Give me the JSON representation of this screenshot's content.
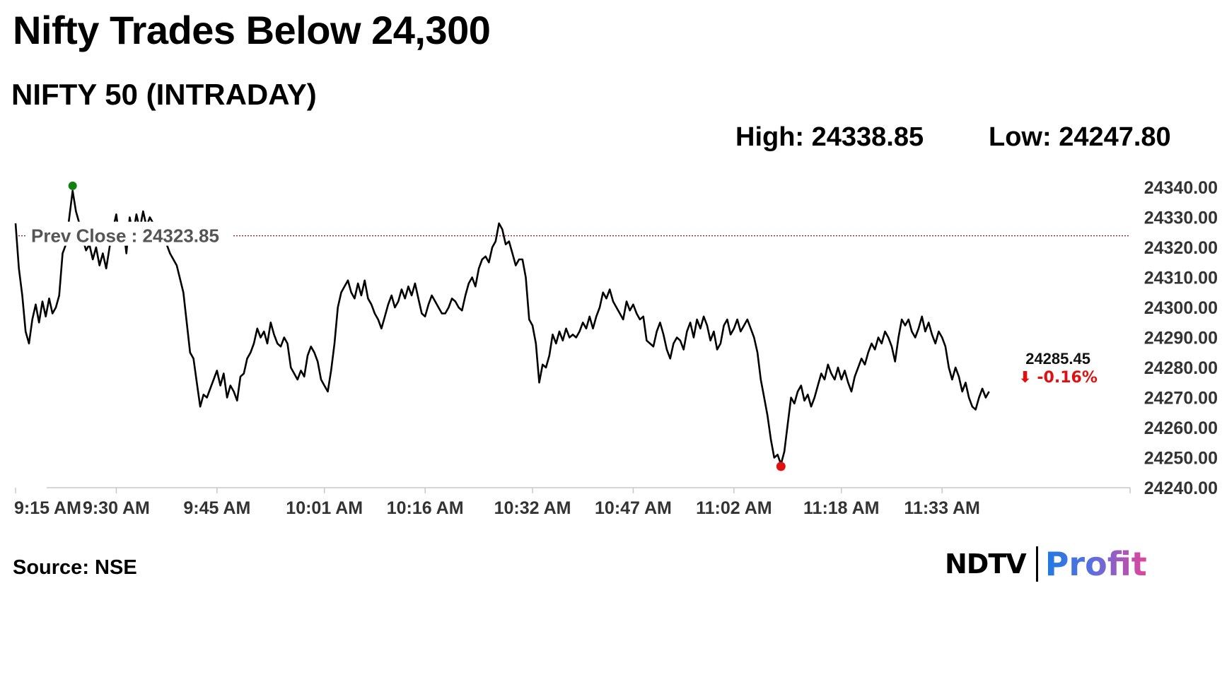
{
  "headline": "Nifty Trades Below 24,300",
  "subtitle": "NIFTY 50 (INTRADAY)",
  "stats": {
    "high": "High: 24338.85",
    "low": "Low: 24247.80"
  },
  "source": "Source: NSE",
  "logo": {
    "ndtv": "NDTV",
    "profit": "Profit"
  },
  "colors": {
    "line": "#000000",
    "prev_close": "#8b1a1a",
    "high_marker": "#108010",
    "low_marker": "#e01010",
    "last_marker": "#1a2aa8",
    "change": "#e01010",
    "axis": "#c8c8c8"
  },
  "chart_data": {
    "type": "line",
    "title": "NIFTY 50 (INTRADAY)",
    "xlabel": "",
    "ylabel": "",
    "ylim": [
      24240,
      24340
    ],
    "y_ticks": [
      "24340.00",
      "24330.00",
      "24320.00",
      "24310.00",
      "24300.00",
      "24290.00",
      "24280.00",
      "24270.00",
      "24260.00",
      "24250.00",
      "24240.00"
    ],
    "x_ticks": [
      "9:15 AM",
      "9:30 AM",
      "9:45 AM",
      "10:01 AM",
      "10:16 AM",
      "10:32 AM",
      "10:47 AM",
      "11:02 AM",
      "11:18 AM",
      "11:33 AM"
    ],
    "x_tick_minutes": [
      0,
      15,
      30,
      46,
      61,
      77,
      92,
      107,
      123,
      138
    ],
    "prev_close": {
      "label": "Prev Close : 24323.85",
      "value": 24323.85
    },
    "last": {
      "value_label": "24285.45",
      "change_label": "-0.16%",
      "value": 24285.45,
      "minute": 150
    },
    "high_point": {
      "minute": 8.5,
      "value": 24338.85
    },
    "low_point": {
      "minute": 114,
      "value": 24247.8
    },
    "series": [
      {
        "points": [
          [
            0,
            24328
          ],
          [
            0.5,
            24313
          ],
          [
            1,
            24304
          ],
          [
            1.5,
            24292
          ],
          [
            2,
            24288
          ],
          [
            2.5,
            24296
          ],
          [
            3,
            24301
          ],
          [
            3.5,
            24295
          ],
          [
            4,
            24302
          ],
          [
            4.5,
            24297
          ],
          [
            5,
            24303
          ],
          [
            5.5,
            24298
          ],
          [
            6,
            24300
          ],
          [
            6.5,
            24304
          ],
          [
            7,
            24318
          ],
          [
            7.5,
            24321
          ],
          [
            8,
            24330
          ],
          [
            8.5,
            24338.85
          ],
          [
            9,
            24332
          ],
          [
            9.5,
            24328
          ],
          [
            10,
            24323
          ],
          [
            10.5,
            24319
          ],
          [
            11,
            24321
          ],
          [
            11.5,
            24316
          ],
          [
            12,
            24320
          ],
          [
            12.5,
            24314
          ],
          [
            13,
            24318
          ],
          [
            13.5,
            24313
          ],
          [
            14,
            24320
          ],
          [
            14.5,
            24326
          ],
          [
            15,
            24331
          ],
          [
            15.5,
            24322
          ],
          [
            16,
            24328
          ],
          [
            16.5,
            24318
          ],
          [
            17,
            24330
          ],
          [
            17.5,
            24324
          ],
          [
            18,
            24331
          ],
          [
            18.5,
            24326
          ],
          [
            19,
            24332
          ],
          [
            19.5,
            24327
          ],
          [
            20,
            24330
          ],
          [
            21,
            24326
          ],
          [
            21.5,
            24322
          ],
          [
            22,
            24324
          ],
          [
            23,
            24318
          ],
          [
            24,
            24314
          ],
          [
            25,
            24305
          ],
          [
            26,
            24285
          ],
          [
            26.5,
            24283
          ],
          [
            27,
            24275
          ],
          [
            27.5,
            24267
          ],
          [
            28,
            24271
          ],
          [
            28.5,
            24270
          ],
          [
            29,
            24273
          ],
          [
            29.5,
            24276
          ],
          [
            30,
            24279
          ],
          [
            30.5,
            24274
          ],
          [
            31,
            24278
          ],
          [
            31.5,
            24270
          ],
          [
            32,
            24274
          ],
          [
            32.5,
            24272
          ],
          [
            33,
            24269
          ],
          [
            33.5,
            24277
          ],
          [
            34,
            24278
          ],
          [
            34.5,
            24283
          ],
          [
            35,
            24285
          ],
          [
            35.5,
            24288
          ],
          [
            36,
            24293
          ],
          [
            36.5,
            24290
          ],
          [
            37,
            24292
          ],
          [
            37.5,
            24288
          ],
          [
            38,
            24295
          ],
          [
            38.5,
            24291
          ],
          [
            39,
            24288
          ],
          [
            39.5,
            24287
          ],
          [
            40,
            24290
          ],
          [
            40.5,
            24288
          ],
          [
            41,
            24280
          ],
          [
            41.5,
            24278
          ],
          [
            42,
            24276
          ],
          [
            42.5,
            24279
          ],
          [
            43,
            24277
          ],
          [
            43.5,
            24284
          ],
          [
            44,
            24287
          ],
          [
            44.5,
            24285
          ],
          [
            45,
            24282
          ],
          [
            45.5,
            24276
          ],
          [
            46,
            24274
          ],
          [
            46.5,
            24272
          ],
          [
            47,
            24279
          ],
          [
            47.5,
            24288
          ],
          [
            48,
            24300
          ],
          [
            48.5,
            24305
          ],
          [
            49,
            24307
          ],
          [
            49.5,
            24309
          ],
          [
            50,
            24305
          ],
          [
            50.5,
            24303
          ],
          [
            51,
            24308
          ],
          [
            51.5,
            24304
          ],
          [
            52,
            24309
          ],
          [
            52.5,
            24303
          ],
          [
            53,
            24301
          ],
          [
            53.5,
            24298
          ],
          [
            54,
            24296
          ],
          [
            54.5,
            24293
          ],
          [
            55,
            24297
          ],
          [
            55.5,
            24301
          ],
          [
            56,
            24304
          ],
          [
            56.5,
            24300
          ],
          [
            57,
            24302
          ],
          [
            57.5,
            24306
          ],
          [
            58,
            24303
          ],
          [
            58.5,
            24307
          ],
          [
            59,
            24304
          ],
          [
            59.5,
            24308
          ],
          [
            60,
            24303
          ],
          [
            60.5,
            24298
          ],
          [
            61,
            24297
          ],
          [
            61.5,
            24301
          ],
          [
            62,
            24304
          ],
          [
            62.5,
            24302
          ],
          [
            63,
            24300
          ],
          [
            63.5,
            24298
          ],
          [
            64,
            24298
          ],
          [
            64.5,
            24300
          ],
          [
            65,
            24303
          ],
          [
            65.5,
            24302
          ],
          [
            66,
            24300
          ],
          [
            66.5,
            24299
          ],
          [
            67,
            24304
          ],
          [
            67.5,
            24308
          ],
          [
            68,
            24310
          ],
          [
            68.5,
            24307
          ],
          [
            69,
            24313
          ],
          [
            69.5,
            24316
          ],
          [
            70,
            24317
          ],
          [
            70.5,
            24315
          ],
          [
            71,
            24320
          ],
          [
            71.5,
            24322
          ],
          [
            72,
            24328
          ],
          [
            72.5,
            24326
          ],
          [
            73,
            24321
          ],
          [
            73.5,
            24322
          ],
          [
            74,
            24318
          ],
          [
            74.5,
            24314
          ],
          [
            75,
            24316
          ],
          [
            75.5,
            24316
          ],
          [
            76,
            24310
          ],
          [
            76.5,
            24296
          ],
          [
            77,
            24294
          ],
          [
            77.5,
            24288
          ],
          [
            78,
            24275
          ],
          [
            78.5,
            24281
          ],
          [
            79,
            24280
          ],
          [
            79.5,
            24284
          ],
          [
            80,
            24291
          ],
          [
            80.5,
            24288
          ],
          [
            81,
            24292
          ],
          [
            81.5,
            24289
          ],
          [
            82,
            24293
          ],
          [
            82.5,
            24290
          ],
          [
            83,
            24291
          ],
          [
            83.5,
            24290
          ],
          [
            84,
            24292
          ],
          [
            84.5,
            24295
          ],
          [
            85,
            24293
          ],
          [
            85.5,
            24297
          ],
          [
            86,
            24293
          ],
          [
            86.5,
            24297
          ],
          [
            87,
            24300
          ],
          [
            87.5,
            24305
          ],
          [
            88,
            24303
          ],
          [
            88.5,
            24306
          ],
          [
            89,
            24302
          ],
          [
            89.5,
            24300
          ],
          [
            90,
            24298
          ],
          [
            90.5,
            24296
          ],
          [
            91,
            24302
          ],
          [
            91.5,
            24299
          ],
          [
            92,
            24301
          ],
          [
            92.5,
            24298
          ],
          [
            93,
            24296
          ],
          [
            93.5,
            24297
          ],
          [
            94,
            24289
          ],
          [
            94.5,
            24288
          ],
          [
            95,
            24287
          ],
          [
            95.5,
            24292
          ],
          [
            96,
            24295
          ],
          [
            96.5,
            24291
          ],
          [
            97,
            24286
          ],
          [
            97.5,
            24283
          ],
          [
            98,
            24288
          ],
          [
            98.5,
            24290
          ],
          [
            99,
            24289
          ],
          [
            99.5,
            24286
          ],
          [
            100,
            24292
          ],
          [
            100.5,
            24295
          ],
          [
            101,
            24290
          ],
          [
            101.5,
            24296
          ],
          [
            102,
            24293
          ],
          [
            102.5,
            24297
          ],
          [
            103,
            24294
          ],
          [
            103.5,
            24289
          ],
          [
            104,
            24292
          ],
          [
            104.5,
            24286
          ],
          [
            105,
            24288
          ],
          [
            105.5,
            24294
          ],
          [
            106,
            24296
          ],
          [
            106.5,
            24291
          ],
          [
            107,
            24293
          ],
          [
            107.5,
            24296
          ],
          [
            108,
            24292
          ],
          [
            108.5,
            24294
          ],
          [
            109,
            24296
          ],
          [
            109.5,
            24293
          ],
          [
            110,
            24290
          ],
          [
            110.5,
            24285
          ],
          [
            111,
            24276
          ],
          [
            111.5,
            24270
          ],
          [
            112,
            24264
          ],
          [
            112.5,
            24256
          ],
          [
            113,
            24250
          ],
          [
            113.5,
            24251
          ],
          [
            114,
            24247.8
          ],
          [
            114.5,
            24252
          ],
          [
            115,
            24261
          ],
          [
            115.5,
            24270
          ],
          [
            116,
            24268
          ],
          [
            116.5,
            24272
          ],
          [
            117,
            24274
          ],
          [
            117.5,
            24269
          ],
          [
            118,
            24271
          ],
          [
            118.5,
            24267
          ],
          [
            119,
            24270
          ],
          [
            119.5,
            24274
          ],
          [
            120,
            24278
          ],
          [
            120.5,
            24276
          ],
          [
            121,
            24281
          ],
          [
            121.5,
            24278
          ],
          [
            122,
            24276
          ],
          [
            122.5,
            24280
          ],
          [
            123,
            24276
          ],
          [
            123.5,
            24279
          ],
          [
            124,
            24275
          ],
          [
            124.5,
            24272
          ],
          [
            125,
            24277
          ],
          [
            125.5,
            24280
          ],
          [
            126,
            24283
          ],
          [
            126.5,
            24281
          ],
          [
            127,
            24285
          ],
          [
            127.5,
            24288
          ],
          [
            128,
            24286
          ],
          [
            128.5,
            24290
          ],
          [
            129,
            24288
          ],
          [
            129.5,
            24292
          ],
          [
            130,
            24290
          ],
          [
            130.5,
            24287
          ],
          [
            131,
            24282
          ],
          [
            131.5,
            24290
          ],
          [
            132,
            24296
          ],
          [
            132.5,
            24294
          ],
          [
            133,
            24296
          ],
          [
            133.5,
            24292
          ],
          [
            134,
            24290
          ],
          [
            134.5,
            24293
          ],
          [
            135,
            24297
          ],
          [
            135.5,
            24292
          ],
          [
            136,
            24295
          ],
          [
            136.5,
            24291
          ],
          [
            137,
            24288
          ],
          [
            137.5,
            24292
          ],
          [
            138,
            24290
          ],
          [
            138.5,
            24287
          ],
          [
            139,
            24280
          ],
          [
            139.5,
            24276
          ],
          [
            140,
            24280
          ],
          [
            140.5,
            24277
          ],
          [
            141,
            24272
          ],
          [
            141.5,
            24275
          ],
          [
            142,
            24270
          ],
          [
            142.5,
            24267
          ],
          [
            143,
            24266
          ],
          [
            143.5,
            24270
          ],
          [
            144,
            24273
          ],
          [
            144.5,
            24270
          ],
          [
            145,
            24272
          ]
        ]
      }
    ]
  }
}
